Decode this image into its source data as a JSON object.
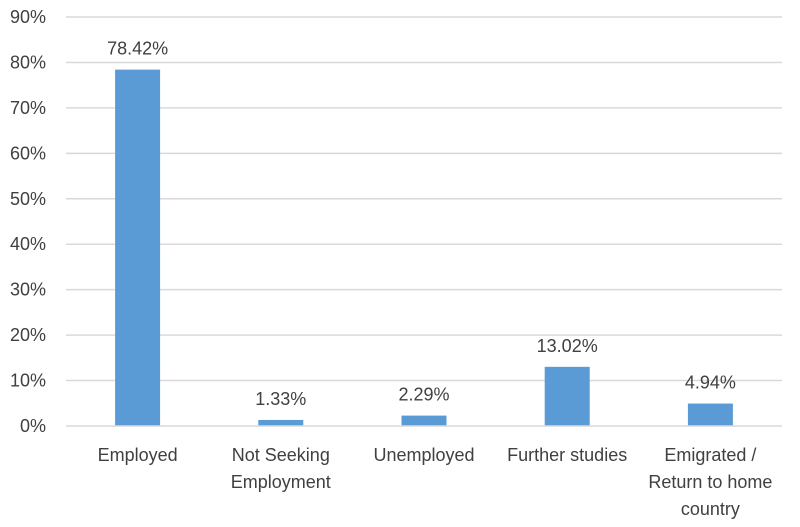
{
  "chart_data": {
    "type": "bar",
    "categories": [
      [
        "Employed"
      ],
      [
        "Not Seeking",
        "Employment"
      ],
      [
        "Unemployed"
      ],
      [
        "Further studies"
      ],
      [
        "Emigrated /",
        "Return to home",
        "country"
      ]
    ],
    "values": [
      78.42,
      1.33,
      2.29,
      13.02,
      4.94
    ],
    "data_labels": [
      "78.42%",
      "1.33%",
      "2.29%",
      "13.02%",
      "4.94%"
    ],
    "ylim": [
      0,
      90
    ],
    "yticks": [
      0,
      10,
      20,
      30,
      40,
      50,
      60,
      70,
      80,
      90
    ],
    "ytick_labels": [
      "0%",
      "10%",
      "20%",
      "30%",
      "40%",
      "50%",
      "60%",
      "70%",
      "80%",
      "90%"
    ],
    "grid": true,
    "legend": "none",
    "colors": {
      "bar": "#5b9bd5",
      "grid": "#d9d9d9",
      "axis": "#d9d9d9",
      "text": "#404040"
    }
  }
}
